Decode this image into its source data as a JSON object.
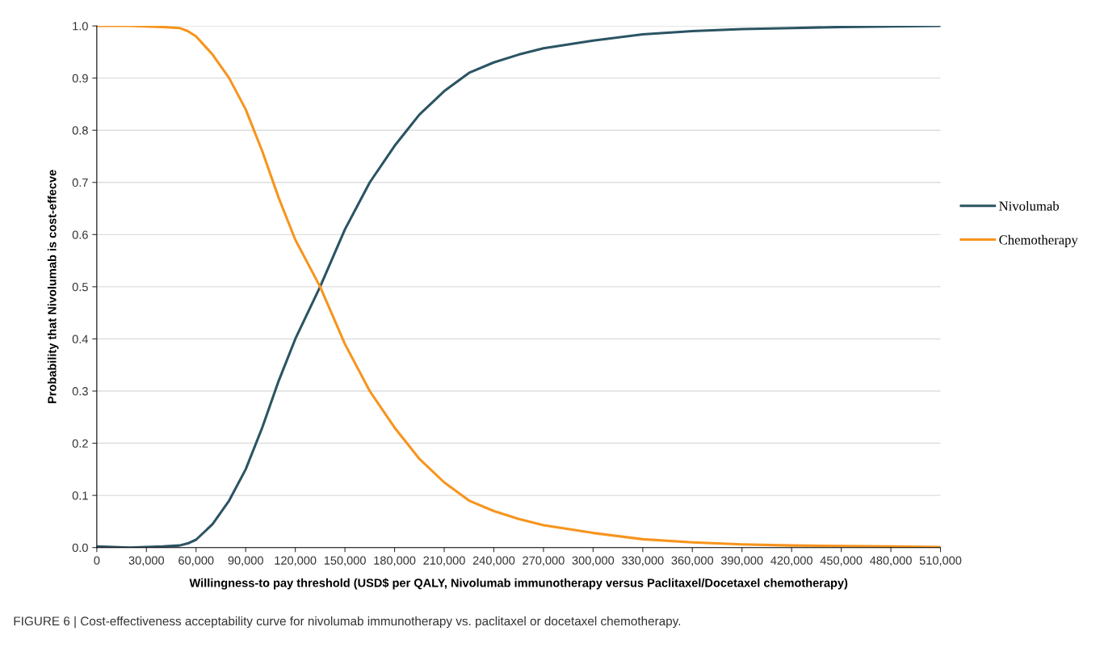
{
  "chart_data": {
    "type": "line",
    "xlabel": "Willingness-to pay threshold (USD$ per QALY, Nivolumab immunotherapy versus Paclitaxel/Docetaxel chemotherapy)",
    "ylabel": "Probability that Nivolumab is cost-effecve",
    "annotations": [
      "FIGURE 6 | Cost-effectiveness acceptability curve for nivolumab immunotherapy vs. paclitaxel or docetaxel chemotherapy."
    ],
    "x": [
      0,
      20000,
      40000,
      50000,
      55000,
      60000,
      70000,
      80000,
      90000,
      100000,
      110000,
      120000,
      135000,
      150000,
      165000,
      180000,
      195000,
      210000,
      225000,
      240000,
      255000,
      270000,
      300000,
      330000,
      360000,
      390000,
      420000,
      450000,
      480000,
      510000
    ],
    "series": [
      {
        "name": "Nivolumab",
        "color": "#2b5463",
        "values": [
          0.002,
          0,
          0.002,
          0.004,
          0.008,
          0.015,
          0.045,
          0.09,
          0.15,
          0.23,
          0.32,
          0.4,
          0.5,
          0.61,
          0.7,
          0.77,
          0.83,
          0.875,
          0.91,
          0.93,
          0.945,
          0.957,
          0.972,
          0.984,
          0.99,
          0.994,
          0.996,
          0.998,
          0.999,
          1.0
        ]
      },
      {
        "name": "Chemotherapy",
        "color": "#f7941d",
        "values": [
          1.0,
          1.0,
          0.998,
          0.996,
          0.99,
          0.98,
          0.945,
          0.9,
          0.84,
          0.76,
          0.67,
          0.59,
          0.5,
          0.39,
          0.3,
          0.23,
          0.17,
          0.125,
          0.09,
          0.07,
          0.055,
          0.043,
          0.028,
          0.016,
          0.01,
          0.006,
          0.004,
          0.003,
          0.002,
          0.001
        ]
      }
    ],
    "xlim": [
      0,
      510000
    ],
    "xticks": [
      0,
      {
        "value": 30000,
        "label": "30,000"
      },
      {
        "value": 60000,
        "label": "60,000"
      },
      {
        "value": 90000,
        "label": "90,000"
      },
      {
        "value": 120000,
        "label": "120,000"
      },
      {
        "value": 150000,
        "label": "150,000"
      },
      {
        "value": 180000,
        "label": "180,000"
      },
      {
        "value": 210000,
        "label": "210,000"
      },
      {
        "value": 240000,
        "label": "240,000"
      },
      {
        "value": 270000,
        "label": "270,000"
      },
      {
        "value": 300000,
        "label": "300,000"
      },
      {
        "value": 330000,
        "label": "330,000"
      },
      {
        "value": 360000,
        "label": "360,000"
      },
      {
        "value": 390000,
        "label": "390,000"
      },
      {
        "value": 420000,
        "label": "420,000"
      },
      {
        "value": 450000,
        "label": "450,000"
      },
      {
        "value": 480000,
        "label": "480,000"
      },
      {
        "value": 510000,
        "label": "510,000"
      }
    ],
    "ylim": [
      0,
      1.0
    ],
    "yticks": [
      {
        "value": 0,
        "label": "0.0"
      },
      0.1,
      0.2,
      0.3,
      0.4,
      0.5,
      0.6,
      0.7,
      0.8,
      0.9,
      {
        "value": 1.0,
        "label": "1.0"
      }
    ],
    "grid": "y",
    "legend": "right",
    "marker": "none",
    "line_style": "solid"
  }
}
